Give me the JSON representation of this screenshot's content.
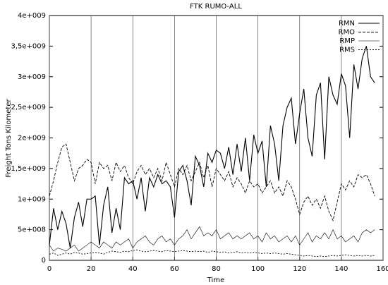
{
  "chart_data": {
    "type": "line",
    "title": "FTK RUMO-ALL",
    "x_label": "Time",
    "y_label": "Freight Tons Kilometer",
    "x": [
      0,
      2,
      4,
      6,
      8,
      10,
      12,
      14,
      16,
      18,
      20,
      22,
      24,
      26,
      28,
      30,
      32,
      34,
      36,
      38,
      40,
      42,
      44,
      46,
      48,
      50,
      52,
      54,
      56,
      58,
      60,
      62,
      64,
      66,
      68,
      70,
      72,
      74,
      76,
      78,
      80,
      82,
      84,
      86,
      88,
      90,
      92,
      94,
      96,
      98,
      100,
      102,
      104,
      106,
      108,
      110,
      112,
      114,
      116,
      118,
      120,
      122,
      124,
      126,
      128,
      130,
      132,
      134,
      136,
      138,
      140,
      142,
      144,
      146,
      148,
      150,
      152,
      154,
      156
    ],
    "series": [
      {
        "name": "RMN",
        "color": "#000000",
        "dash": "none",
        "width": 1.1,
        "values": [
          250000000.0,
          850000000.0,
          500000000.0,
          800000000.0,
          600000000.0,
          200000000.0,
          700000000.0,
          950000000.0,
          550000000.0,
          1000000000.0,
          1000000000.0,
          1050000000.0,
          250000000.0,
          900000000.0,
          1200000000.0,
          450000000.0,
          850000000.0,
          500000000.0,
          1350000000.0,
          1250000000.0,
          1300000000.0,
          1000000000.0,
          1350000000.0,
          800000000.0,
          1350000000.0,
          1200000000.0,
          1400000000.0,
          1250000000.0,
          1300000000.0,
          1200000000.0,
          700000000.0,
          1450000000.0,
          1550000000.0,
          1300000000.0,
          900000000.0,
          1700000000.0,
          1550000000.0,
          1200000000.0,
          1750000000.0,
          1600000000.0,
          1800000000.0,
          1750000000.0,
          1500000000.0,
          1850000000.0,
          1400000000.0,
          1900000000.0,
          1450000000.0,
          2000000000.0,
          1300000000.0,
          2050000000.0,
          1750000000.0,
          1950000000.0,
          1200000000.0,
          2200000000.0,
          1900000000.0,
          1300000000.0,
          2200000000.0,
          2500000000.0,
          2650000000.0,
          1900000000.0,
          2400000000.0,
          2800000000.0,
          2000000000.0,
          1700000000.0,
          2700000000.0,
          2900000000.0,
          1650000000.0,
          3000000000.0,
          2700000000.0,
          2550000000.0,
          3050000000.0,
          2850000000.0,
          2000000000.0,
          3200000000.0,
          2800000000.0,
          3300000000.0,
          3500000000.0,
          3000000000.0,
          2900000000.0
        ]
      },
      {
        "name": "RMO",
        "color": "#000000",
        "dash": "4,2",
        "width": 0.9,
        "values": [
          1050000000.0,
          1300000000.0,
          1600000000.0,
          1850000000.0,
          1900000000.0,
          1600000000.0,
          1300000000.0,
          1500000000.0,
          1550000000.0,
          1650000000.0,
          1600000000.0,
          1250000000.0,
          1600000000.0,
          1500000000.0,
          1550000000.0,
          1300000000.0,
          1600000000.0,
          1450000000.0,
          1550000000.0,
          1350000000.0,
          1250000000.0,
          1450000000.0,
          1550000000.0,
          1400000000.0,
          1500000000.0,
          1350000000.0,
          1500000000.0,
          1300000000.0,
          1600000000.0,
          1400000000.0,
          1200000000.0,
          1500000000.0,
          1400000000.0,
          1550000000.0,
          1300000000.0,
          1450000000.0,
          1600000000.0,
          1350000000.0,
          1550000000.0,
          1200000000.0,
          1500000000.0,
          1400000000.0,
          1300000000.0,
          1450000000.0,
          1200000000.0,
          1350000000.0,
          1250000000.0,
          1100000000.0,
          1300000000.0,
          1200000000.0,
          1250000000.0,
          1100000000.0,
          1200000000.0,
          1300000000.0,
          1100000000.0,
          1200000000.0,
          1050000000.0,
          1300000000.0,
          1200000000.0,
          1000000000.0,
          750000000.0,
          950000000.0,
          1050000000.0,
          900000000.0,
          1000000000.0,
          850000000.0,
          1050000000.0,
          800000000.0,
          650000000.0,
          950000000.0,
          1250000000.0,
          1150000000.0,
          1300000000.0,
          1200000000.0,
          1400000000.0,
          1350000000.0,
          1400000000.0,
          1250000000.0,
          1050000000.0
        ]
      },
      {
        "name": "RMP",
        "color": "#000000",
        "dash": "none",
        "width": 0.6,
        "values": [
          250000000.0,
          150000000.0,
          200000000.0,
          180000000.0,
          150000000.0,
          200000000.0,
          250000000.0,
          150000000.0,
          200000000.0,
          250000000.0,
          300000000.0,
          250000000.0,
          200000000.0,
          300000000.0,
          250000000.0,
          200000000.0,
          300000000.0,
          250000000.0,
          300000000.0,
          350000000.0,
          200000000.0,
          300000000.0,
          350000000.0,
          400000000.0,
          300000000.0,
          250000000.0,
          350000000.0,
          400000000.0,
          300000000.0,
          350000000.0,
          250000000.0,
          350000000.0,
          400000000.0,
          500000000.0,
          350000000.0,
          450000000.0,
          550000000.0,
          400000000.0,
          450000000.0,
          400000000.0,
          500000000.0,
          350000000.0,
          400000000.0,
          450000000.0,
          350000000.0,
          400000000.0,
          350000000.0,
          400000000.0,
          450000000.0,
          350000000.0,
          400000000.0,
          300000000.0,
          450000000.0,
          350000000.0,
          400000000.0,
          300000000.0,
          350000000.0,
          400000000.0,
          300000000.0,
          400000000.0,
          250000000.0,
          350000000.0,
          450000000.0,
          300000000.0,
          400000000.0,
          350000000.0,
          450000000.0,
          350000000.0,
          500000000.0,
          350000000.0,
          400000000.0,
          300000000.0,
          350000000.0,
          400000000.0,
          300000000.0,
          450000000.0,
          500000000.0,
          450000000.0,
          500000000.0
        ]
      },
      {
        "name": "RMS",
        "color": "#000000",
        "dash": "2,2",
        "width": 0.9,
        "values": [
          100000000.0,
          120000000.0,
          80000000.0,
          100000000.0,
          120000000.0,
          100000000.0,
          130000000.0,
          120000000.0,
          100000000.0,
          110000000.0,
          120000000.0,
          130000000.0,
          120000000.0,
          100000000.0,
          130000000.0,
          150000000.0,
          140000000.0,
          130000000.0,
          150000000.0,
          140000000.0,
          160000000.0,
          170000000.0,
          150000000.0,
          140000000.0,
          150000000.0,
          160000000.0,
          150000000.0,
          140000000.0,
          160000000.0,
          150000000.0,
          140000000.0,
          150000000.0,
          160000000.0,
          150000000.0,
          140000000.0,
          150000000.0,
          140000000.0,
          150000000.0,
          130000000.0,
          150000000.0,
          140000000.0,
          130000000.0,
          140000000.0,
          120000000.0,
          130000000.0,
          140000000.0,
          120000000.0,
          130000000.0,
          120000000.0,
          130000000.0,
          120000000.0,
          110000000.0,
          120000000.0,
          110000000.0,
          120000000.0,
          110000000.0,
          100000000.0,
          110000000.0,
          100000000.0,
          90000000.0,
          80000000.0,
          70000000.0,
          80000000.0,
          70000000.0,
          60000000.0,
          70000000.0,
          60000000.0,
          70000000.0,
          80000000.0,
          70000000.0,
          80000000.0,
          90000000.0,
          80000000.0,
          70000000.0,
          80000000.0,
          70000000.0,
          80000000.0,
          70000000.0,
          80000000.0
        ]
      }
    ],
    "xlim": [
      0,
      160
    ],
    "xticks": [
      0,
      20,
      40,
      60,
      80,
      100,
      120,
      140,
      160
    ],
    "ylim": [
      0,
      4000000000
    ],
    "yticks": [
      0,
      {
        "value": 500000000,
        "label": "5e+008"
      },
      {
        "value": 1000000000,
        "label": "1e+009"
      },
      {
        "value": 1500000000,
        "label": "1,5e+009"
      },
      {
        "value": 2000000000,
        "label": "2e+009"
      },
      {
        "value": 2500000000,
        "label": "2,5e+009"
      },
      {
        "value": 3000000000,
        "label": "3e+009"
      },
      {
        "value": 3500000000,
        "label": "3,5e+009"
      },
      {
        "value": 4000000000,
        "label": "4e+009"
      }
    ],
    "grid": "x",
    "legend": "top right"
  }
}
